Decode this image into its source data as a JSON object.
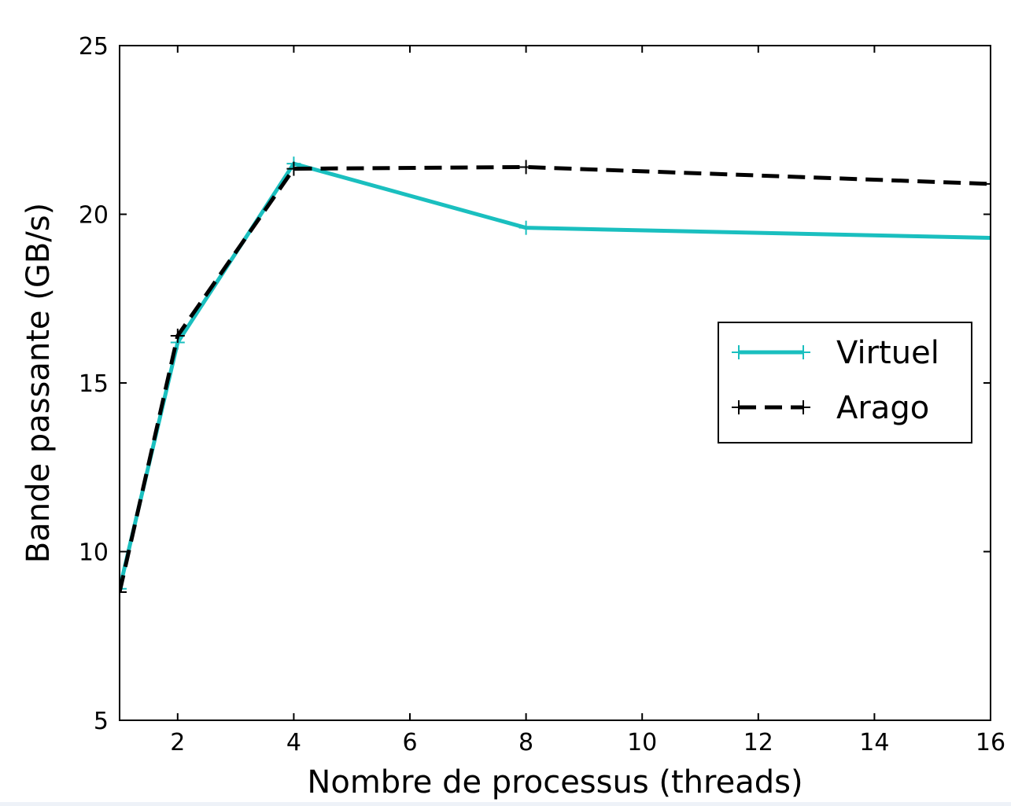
{
  "chart_data": {
    "type": "line",
    "xlabel": "Nombre de processus (threads)",
    "ylabel": "Bande passante (GB/s)",
    "xlim": [
      1,
      16
    ],
    "ylim": [
      5,
      25
    ],
    "x_ticks": [
      2,
      4,
      6,
      8,
      10,
      12,
      14,
      16
    ],
    "y_ticks": [
      5,
      10,
      15,
      20,
      25
    ],
    "x_tick_labels": [
      "2",
      "4",
      "6",
      "8",
      "10",
      "12",
      "14",
      "16"
    ],
    "y_tick_labels": [
      "5",
      "10",
      "15",
      "20",
      "25"
    ],
    "grid": false,
    "legend_position": "center-right",
    "series": [
      {
        "name": "Virtuel",
        "x": [
          1,
          2,
          4,
          8,
          16
        ],
        "y": [
          8.9,
          16.2,
          21.5,
          19.6,
          19.3
        ],
        "color": "#1abfbf",
        "linestyle": "solid",
        "marker": "plus"
      },
      {
        "name": "Arago",
        "x": [
          1,
          2,
          4,
          8,
          16
        ],
        "y": [
          8.8,
          16.4,
          21.35,
          21.4,
          20.9
        ],
        "color": "#000000",
        "linestyle": "dashed",
        "marker": "plus"
      }
    ]
  }
}
